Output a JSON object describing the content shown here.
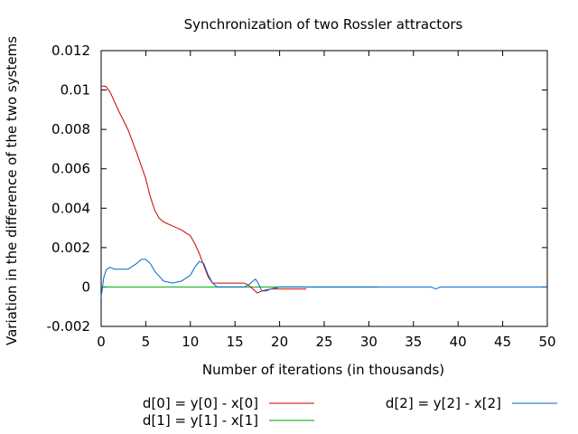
{
  "chart_data": {
    "type": "line",
    "title": "Synchronization of two Rossler attractors",
    "xlabel": "Number of iterations (in thousands)",
    "ylabel": "Variation in the difference of the two systems",
    "xlim": [
      0,
      50
    ],
    "ylim": [
      -0.002,
      0.012
    ],
    "x_ticks": [
      0,
      5,
      10,
      15,
      20,
      25,
      30,
      35,
      40,
      45,
      50
    ],
    "y_ticks": [
      -0.002,
      0,
      0.002,
      0.004,
      0.006,
      0.008,
      0.01,
      0.012
    ],
    "x_tick_labels": [
      "0",
      "5",
      "10",
      "15",
      "20",
      "25",
      "30",
      "35",
      "40",
      "45",
      "50"
    ],
    "y_tick_labels": [
      "-0.002",
      "0",
      "0.002",
      "0.004",
      "0.006",
      "0.008",
      "0.01",
      "0.012"
    ],
    "grid": false,
    "legend_position": "bottom",
    "series": [
      {
        "name": "d[0] = y[0] - x[0]",
        "color": "#cc0000",
        "x": [
          0,
          0.5,
          1,
          2,
          3,
          4,
          5,
          5.5,
          6,
          6.5,
          7,
          8,
          9,
          10,
          10.5,
          11,
          11.5,
          12,
          12.5,
          13,
          14,
          15,
          16,
          16.5,
          17,
          17.5,
          18,
          19,
          20,
          21,
          22,
          23
        ],
        "y": [
          0.0102,
          0.0102,
          0.0099,
          0.0089,
          0.008,
          0.0068,
          0.0055,
          0.0046,
          0.0039,
          0.0035,
          0.0033,
          0.0031,
          0.0029,
          0.0026,
          0.0022,
          0.0017,
          0.0011,
          0.0005,
          0.0002,
          0.0002,
          0.0002,
          0.0002,
          0.0002,
          0.0001,
          -0.0001,
          -0.0003,
          -0.0002,
          -0.0001,
          -0.0001,
          -0.0001,
          -0.0001,
          -0.0001
        ]
      },
      {
        "name": "d[1] = y[1] - x[1]",
        "color": "#00aa00",
        "x": [
          0,
          5,
          10,
          15,
          20,
          25,
          30,
          31
        ],
        "y": [
          0,
          0,
          0,
          0,
          0,
          0,
          0,
          0
        ]
      },
      {
        "name": "d[2] = y[2] - x[2]",
        "color": "#0066cc",
        "x": [
          0,
          0.3,
          0.6,
          1,
          1.5,
          2,
          3,
          4,
          4.5,
          5,
          5.5,
          6,
          7,
          8,
          9,
          10,
          10.5,
          11,
          11.5,
          12,
          12.5,
          13,
          14,
          15,
          16,
          16.5,
          17,
          17.3,
          17.6,
          18,
          18.5,
          19,
          20,
          25,
          30,
          35,
          37,
          37.5,
          38,
          40,
          45,
          50
        ],
        "y": [
          -0.0005,
          0.0005,
          0.0009,
          0.001,
          0.0009,
          0.0009,
          0.0009,
          0.0012,
          0.0014,
          0.0014,
          0.0012,
          0.0008,
          0.0003,
          0.0002,
          0.0003,
          0.0006,
          0.001,
          0.0013,
          0.0012,
          0.0006,
          0.0002,
          0,
          0,
          0,
          0,
          0.0001,
          0.0003,
          0.0004,
          0.0002,
          -0.0002,
          -0.0002,
          -0.0001,
          0,
          0,
          0,
          0,
          0,
          -0.0001,
          0,
          0,
          0,
          0
        ]
      }
    ]
  }
}
